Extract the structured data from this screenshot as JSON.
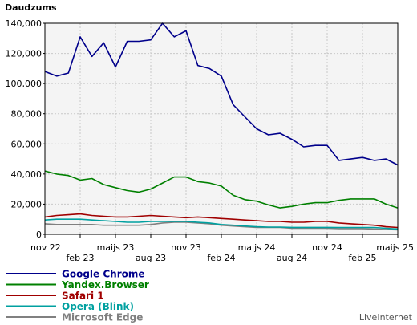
{
  "chart_data": {
    "type": "line",
    "ylabel": "Daudzums",
    "ylim": [
      0,
      140000
    ],
    "yticks": [
      0,
      20000,
      40000,
      60000,
      80000,
      100000,
      120000,
      140000
    ],
    "ytick_labels": [
      "0",
      "20,000",
      "40,000",
      "60,000",
      "80,000",
      "100,000",
      "120,000",
      "140,000"
    ],
    "xticks": [
      {
        "index": 0,
        "label": "nov 22",
        "row": 0
      },
      {
        "index": 3,
        "label": "feb 23",
        "row": 1
      },
      {
        "index": 6,
        "label": "maijs 23",
        "row": 0
      },
      {
        "index": 9,
        "label": "aug 23",
        "row": 1
      },
      {
        "index": 12,
        "label": "nov 23",
        "row": 0
      },
      {
        "index": 15,
        "label": "feb 24",
        "row": 1
      },
      {
        "index": 18,
        "label": "maijs 24",
        "row": 0
      },
      {
        "index": 21,
        "label": "aug 24",
        "row": 1
      },
      {
        "index": 24,
        "label": "nov 24",
        "row": 0
      },
      {
        "index": 27,
        "label": "feb 25",
        "row": 1
      },
      {
        "index": 30,
        "label": "maijs 25",
        "row": 0
      }
    ],
    "x_points": 31,
    "grid": true,
    "series": [
      {
        "name": "Google Chrome",
        "color": "#00008b",
        "values": [
          108000,
          105000,
          107000,
          131000,
          118000,
          127000,
          111000,
          128000,
          128000,
          129000,
          140000,
          131000,
          135000,
          112000,
          110000,
          105000,
          86000,
          78000,
          70000,
          66000,
          67000,
          63000,
          58000,
          59000,
          59000,
          49000,
          50000,
          51000,
          49000,
          50000,
          46000
        ]
      },
      {
        "name": "Yandex.Browser",
        "color": "#008000",
        "values": [
          42000,
          40000,
          39000,
          36000,
          37000,
          33000,
          31000,
          29000,
          28000,
          30000,
          34000,
          38000,
          38000,
          35000,
          34000,
          32000,
          26000,
          23000,
          22000,
          19500,
          17500,
          18500,
          20000,
          21000,
          21000,
          22500,
          23500,
          23500,
          23500,
          20000,
          17500
        ]
      },
      {
        "name": "Safari 1",
        "color": "#a00000",
        "values": [
          11500,
          12500,
          13000,
          13500,
          12500,
          12000,
          11500,
          11500,
          12000,
          12500,
          12000,
          11500,
          11000,
          11500,
          11000,
          10500,
          10000,
          9500,
          9000,
          8500,
          8500,
          8000,
          8000,
          8500,
          8500,
          7500,
          7000,
          6500,
          6000,
          5000,
          4500
        ]
      },
      {
        "name": "Opera (Blink)",
        "color": "#00a0a0",
        "values": [
          9500,
          10000,
          10000,
          10000,
          9500,
          9000,
          8500,
          8000,
          8000,
          8500,
          8500,
          8500,
          8500,
          8000,
          7500,
          6500,
          6000,
          5500,
          5000,
          4800,
          4800,
          4600,
          4600,
          4600,
          4600,
          4500,
          4500,
          4500,
          4500,
          4000,
          3500
        ]
      },
      {
        "name": "Microsoft Edge",
        "color": "#808080",
        "values": [
          7000,
          6500,
          6500,
          6500,
          6500,
          6000,
          6000,
          6000,
          6000,
          6500,
          7500,
          8000,
          8000,
          7500,
          7000,
          6000,
          5500,
          5000,
          4500,
          4500,
          4500,
          4000,
          4000,
          4000,
          4000,
          3800,
          3800,
          3800,
          3500,
          3200,
          3000
        ]
      }
    ]
  },
  "credit": "LiveInternet"
}
